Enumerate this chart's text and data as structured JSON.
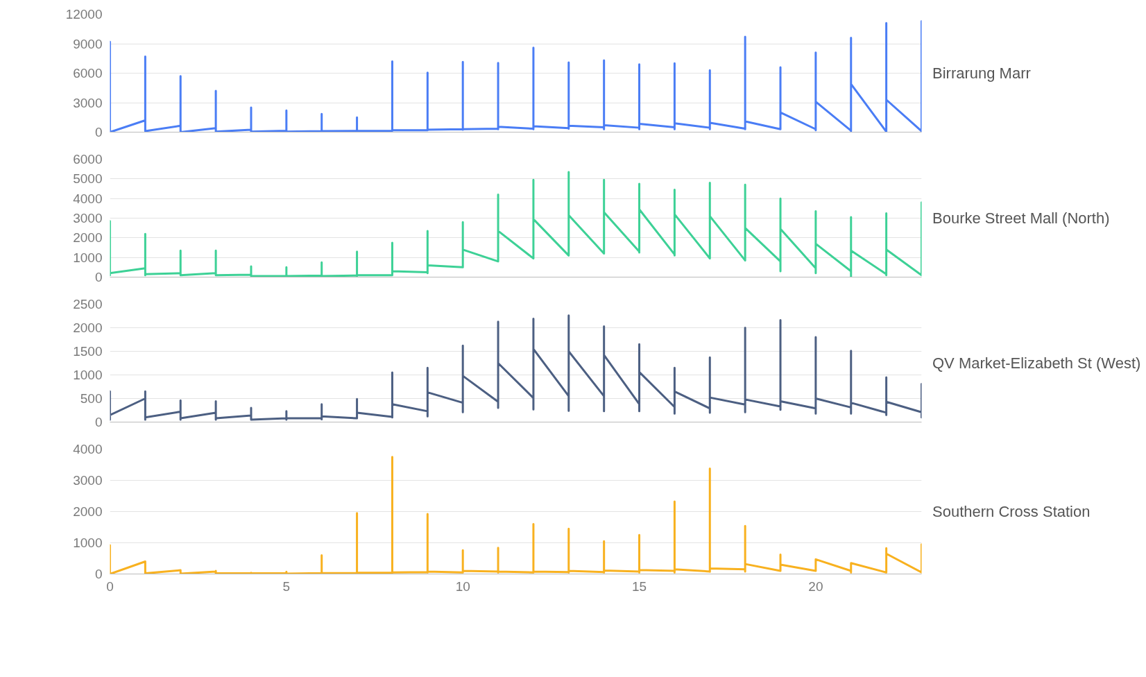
{
  "chart_data": [
    {
      "type": "line",
      "xlim": [
        0,
        23
      ],
      "xticks": [
        0,
        5,
        10,
        15,
        20
      ],
      "ylim": [
        0,
        12000
      ],
      "yticks": [
        0,
        3000,
        6000,
        9000,
        12000
      ],
      "grid": "y",
      "tick_labels": "y",
      "x": [
        0,
        0,
        0,
        0,
        1,
        1,
        1,
        1,
        2,
        2,
        2,
        2,
        3,
        3,
        3,
        3,
        4,
        4,
        4,
        4,
        5,
        5,
        5,
        5,
        6,
        6,
        6,
        6,
        7,
        7,
        7,
        7,
        8,
        8,
        8,
        8,
        9,
        9,
        9,
        9,
        10,
        10,
        10,
        10,
        11,
        11,
        11,
        11,
        12,
        12,
        12,
        12,
        13,
        13,
        13,
        13,
        14,
        14,
        14,
        14,
        15,
        15,
        15,
        15,
        16,
        16,
        16,
        16,
        17,
        17,
        17,
        17,
        18,
        18,
        18,
        18,
        19,
        19,
        19,
        19,
        20,
        20,
        20,
        20,
        21,
        21,
        21,
        21,
        22,
        22,
        22,
        22,
        23,
        23,
        23,
        23
      ],
      "series": [
        {
          "name": "Birrarung Marr",
          "color": "#4a7df5",
          "values": [
            0,
            9200,
            0,
            0,
            1200,
            7700,
            100,
            100,
            650,
            5700,
            0,
            0,
            400,
            4200,
            50,
            50,
            250,
            2500,
            50,
            50,
            150,
            2200,
            50,
            50,
            100,
            1850,
            100,
            100,
            120,
            1500,
            120,
            120,
            150,
            7200,
            150,
            200,
            200,
            6050,
            200,
            250,
            300,
            7150,
            250,
            300,
            350,
            7050,
            300,
            550,
            350,
            8600,
            300,
            600,
            400,
            7100,
            350,
            650,
            500,
            7300,
            300,
            700,
            450,
            6900,
            300,
            850,
            500,
            7000,
            300,
            900,
            450,
            6300,
            300,
            950,
            350,
            9700,
            300,
            1100,
            300,
            6600,
            300,
            2000,
            300,
            8100,
            200,
            3100,
            150,
            9600,
            100,
            4900,
            50,
            11100,
            0,
            3300,
            100,
            11300,
            0,
            0
          ]
        }
      ]
    },
    {
      "type": "line",
      "xlim": [
        0,
        23
      ],
      "xticks": [
        0,
        5,
        10,
        15,
        20
      ],
      "ylim": [
        0,
        6000
      ],
      "yticks": [
        0,
        1000,
        2000,
        3000,
        4000,
        5000,
        6000
      ],
      "grid": "y",
      "tick_labels": "y",
      "x": [
        0,
        0,
        0,
        0,
        1,
        1,
        1,
        1,
        2,
        2,
        2,
        2,
        3,
        3,
        3,
        3,
        4,
        4,
        4,
        4,
        5,
        5,
        5,
        5,
        6,
        6,
        6,
        6,
        7,
        7,
        7,
        7,
        8,
        8,
        8,
        8,
        9,
        9,
        9,
        9,
        10,
        10,
        10,
        10,
        11,
        11,
        11,
        11,
        12,
        12,
        12,
        12,
        13,
        13,
        13,
        13,
        14,
        14,
        14,
        14,
        15,
        15,
        15,
        15,
        16,
        16,
        16,
        16,
        17,
        17,
        17,
        17,
        18,
        18,
        18,
        18,
        19,
        19,
        19,
        19,
        20,
        20,
        20,
        20,
        21,
        21,
        21,
        21,
        22,
        22,
        22,
        22,
        23,
        23,
        23,
        23
      ],
      "series": [
        {
          "name": "Bourke Street Mall (North)",
          "color": "#3dd196",
          "values": [
            200,
            2850,
            100,
            200,
            450,
            2200,
            100,
            150,
            200,
            1350,
            100,
            100,
            200,
            1350,
            100,
            100,
            120,
            550,
            50,
            50,
            50,
            500,
            50,
            50,
            80,
            750,
            50,
            50,
            80,
            1300,
            50,
            100,
            100,
            1750,
            100,
            300,
            250,
            2350,
            200,
            600,
            500,
            2800,
            500,
            1400,
            800,
            4200,
            800,
            2350,
            950,
            4950,
            950,
            2950,
            1100,
            5350,
            1100,
            3150,
            1200,
            4950,
            1200,
            3300,
            1300,
            4750,
            1250,
            3450,
            1150,
            4450,
            1100,
            3200,
            950,
            4800,
            950,
            3100,
            850,
            4700,
            850,
            2500,
            800,
            4000,
            300,
            2450,
            450,
            3350,
            200,
            1700,
            300,
            3050,
            0,
            1350,
            150,
            3250,
            100,
            1400,
            100,
            3800,
            100,
            100
          ]
        }
      ]
    },
    {
      "type": "line",
      "xlim": [
        0,
        23
      ],
      "xticks": [
        0,
        5,
        10,
        15,
        20
      ],
      "ylim": [
        0,
        2500
      ],
      "yticks": [
        0,
        500,
        1000,
        1500,
        2000,
        2500
      ],
      "grid": "y",
      "tick_labels": "y",
      "x": [
        0,
        0,
        0,
        0,
        1,
        1,
        1,
        1,
        2,
        2,
        2,
        2,
        3,
        3,
        3,
        3,
        4,
        4,
        4,
        4,
        5,
        5,
        5,
        5,
        6,
        6,
        6,
        6,
        7,
        7,
        7,
        7,
        8,
        8,
        8,
        8,
        9,
        9,
        9,
        9,
        10,
        10,
        10,
        10,
        11,
        11,
        11,
        11,
        12,
        12,
        12,
        12,
        13,
        13,
        13,
        13,
        14,
        14,
        14,
        14,
        15,
        15,
        15,
        15,
        16,
        16,
        16,
        16,
        17,
        17,
        17,
        17,
        18,
        18,
        18,
        18,
        19,
        19,
        19,
        19,
        20,
        20,
        20,
        20,
        21,
        21,
        21,
        21,
        22,
        22,
        22,
        22,
        23,
        23,
        23,
        23
      ],
      "series": [
        {
          "name": "QV Market-Elizabeth St (West)",
          "color": "#4c5f82",
          "values": [
            150,
            650,
            50,
            150,
            500,
            650,
            50,
            100,
            220,
            460,
            50,
            80,
            200,
            440,
            50,
            80,
            140,
            300,
            50,
            50,
            80,
            230,
            50,
            80,
            80,
            380,
            60,
            120,
            80,
            490,
            80,
            200,
            110,
            1050,
            100,
            380,
            230,
            1150,
            120,
            630,
            410,
            1620,
            210,
            980,
            430,
            2130,
            300,
            1250,
            510,
            2190,
            270,
            1550,
            550,
            2260,
            240,
            1500,
            550,
            2030,
            230,
            1420,
            380,
            1650,
            230,
            1060,
            320,
            1150,
            180,
            650,
            290,
            1370,
            200,
            520,
            370,
            2000,
            210,
            480,
            330,
            2160,
            260,
            440,
            290,
            1800,
            180,
            500,
            310,
            1510,
            180,
            410,
            200,
            950,
            150,
            430,
            210,
            810,
            100,
            210
          ]
        }
      ]
    },
    {
      "type": "line",
      "xlim": [
        0,
        23
      ],
      "xticks": [
        0,
        5,
        10,
        15,
        20
      ],
      "ylim": [
        0,
        4000
      ],
      "yticks": [
        0,
        1000,
        2000,
        3000,
        4000
      ],
      "grid": "y",
      "x": [
        0,
        0,
        0,
        0,
        1,
        1,
        1,
        1,
        2,
        2,
        2,
        2,
        3,
        3,
        3,
        3,
        4,
        4,
        4,
        4,
        5,
        5,
        5,
        5,
        6,
        6,
        6,
        6,
        7,
        7,
        7,
        7,
        8,
        8,
        8,
        8,
        9,
        9,
        9,
        9,
        10,
        10,
        10,
        10,
        11,
        11,
        11,
        11,
        12,
        12,
        12,
        12,
        13,
        13,
        13,
        13,
        14,
        14,
        14,
        14,
        15,
        15,
        15,
        15,
        16,
        16,
        16,
        16,
        17,
        17,
        17,
        17,
        18,
        18,
        18,
        18,
        19,
        19,
        19,
        19,
        20,
        20,
        20,
        20,
        21,
        21,
        21,
        21,
        22,
        22,
        22,
        22,
        23,
        23,
        23,
        23
      ],
      "series": [
        {
          "name": "Southern Cross Station",
          "color": "#f8b11f",
          "values": [
            0,
            920,
            0,
            0,
            400,
            400,
            20,
            20,
            120,
            120,
            10,
            10,
            80,
            100,
            20,
            20,
            30,
            40,
            20,
            20,
            20,
            70,
            10,
            10,
            30,
            600,
            30,
            30,
            30,
            1950,
            30,
            40,
            40,
            3750,
            40,
            50,
            60,
            1920,
            50,
            80,
            50,
            760,
            50,
            100,
            80,
            840,
            50,
            80,
            50,
            1600,
            50,
            80,
            60,
            1450,
            50,
            100,
            60,
            1050,
            50,
            110,
            80,
            1250,
            50,
            130,
            100,
            2320,
            50,
            150,
            80,
            3380,
            70,
            180,
            150,
            1540,
            80,
            320,
            100,
            620,
            100,
            300,
            100,
            470,
            100,
            470,
            100,
            350,
            50,
            350,
            50,
            830,
            50,
            650,
            50,
            950,
            50,
            50
          ]
        }
      ]
    }
  ]
}
